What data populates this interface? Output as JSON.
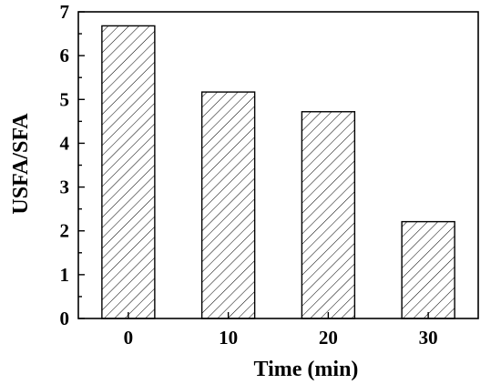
{
  "chart_data": {
    "type": "bar",
    "categories": [
      "0",
      "10",
      "20",
      "30"
    ],
    "values": [
      6.68,
      5.17,
      4.72,
      2.21
    ],
    "xlabel": "Time (min)",
    "ylabel": "USFA/SFA",
    "ylim": [
      0,
      7
    ],
    "yticks": [
      "0",
      "1",
      "2",
      "3",
      "4",
      "5",
      "6",
      "7"
    ],
    "grid": false,
    "bar_fill": "diagonal-hatch",
    "bar_color": "#000000",
    "background": "#ffffff"
  }
}
